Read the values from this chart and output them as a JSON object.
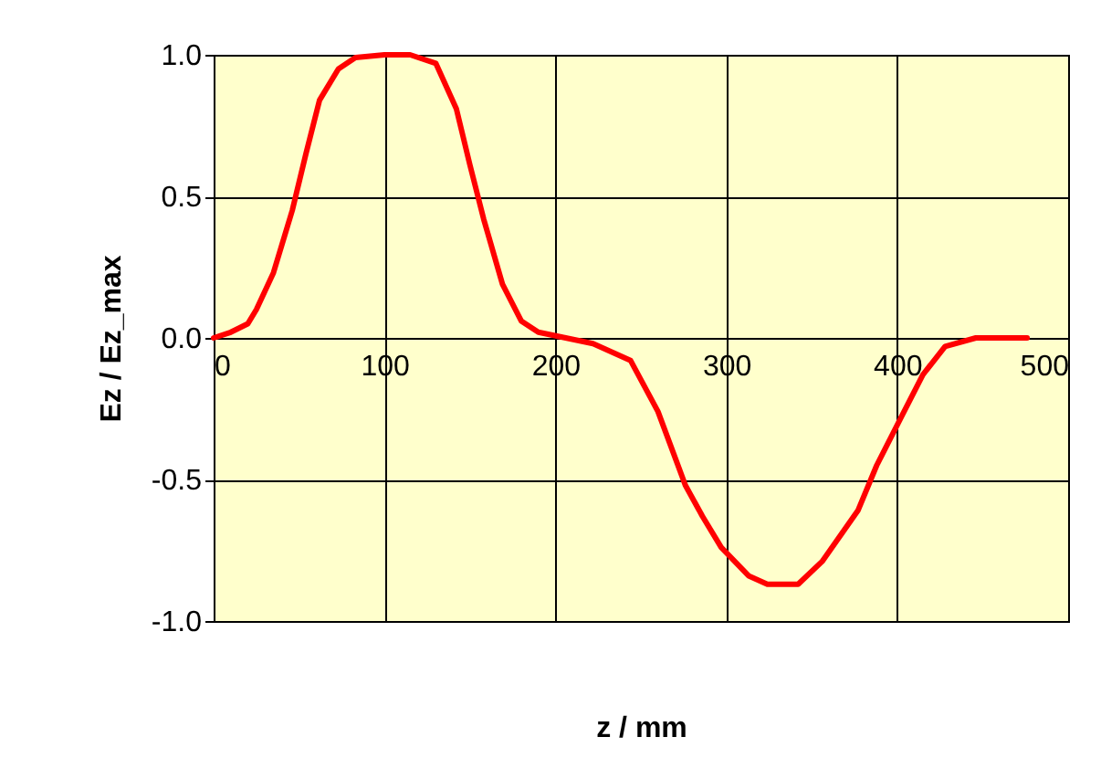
{
  "chart_data": {
    "type": "line",
    "xlabel": "z / mm",
    "ylabel": "Ez / Ez_max",
    "x": [
      0,
      10,
      20,
      25,
      35,
      46,
      54,
      62,
      73,
      83,
      100,
      115,
      130,
      142,
      150,
      158,
      169,
      180,
      190,
      206,
      222,
      244,
      260,
      276,
      286,
      297,
      313,
      324,
      342,
      356,
      377,
      388,
      404,
      415,
      428,
      446,
      476
    ],
    "series": [
      {
        "color": "#ff0000",
        "values": [
          0,
          0.02,
          0.05,
          0.1,
          0.23,
          0.45,
          0.65,
          0.84,
          0.95,
          0.99,
          1.0,
          1.0,
          0.97,
          0.81,
          0.61,
          0.42,
          0.19,
          0.06,
          0.02,
          0,
          -0.02,
          -0.08,
          -0.26,
          -0.52,
          -0.63,
          -0.74,
          -0.84,
          -0.87,
          -0.87,
          -0.79,
          -0.61,
          -0.45,
          -0.26,
          -0.13,
          -0.03,
          0,
          0
        ]
      }
    ],
    "xlim": [
      0,
      500
    ],
    "xticks": [
      0,
      100,
      200,
      300,
      400,
      500
    ],
    "ylim": [
      -1,
      1
    ],
    "yticks": [
      {
        "value": -1,
        "label": "-1.0"
      },
      {
        "value": -0.5,
        "label": "-0.5"
      },
      {
        "value": 0,
        "label": "0.0"
      },
      {
        "value": 0.5,
        "label": "0.5"
      },
      {
        "value": 1,
        "label": "1.0"
      }
    ],
    "grid": true,
    "marker": "none",
    "line_style": "solid"
  }
}
